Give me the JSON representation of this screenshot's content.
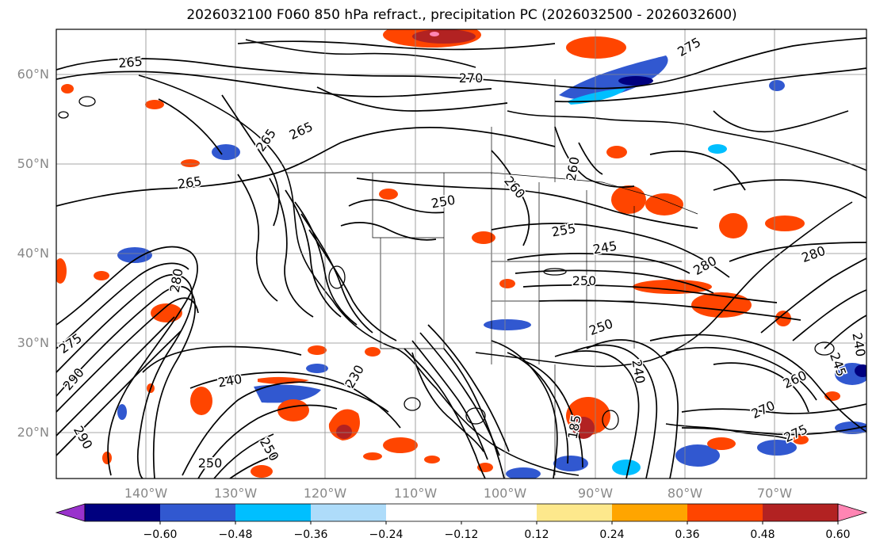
{
  "title": "2026032100 F060 850 hPa refract., precipitation PC (2026032500 - 2026032600)",
  "map": {
    "lat_labels": [
      "20°N",
      "30°N",
      "40°N",
      "50°N",
      "60°N"
    ],
    "lon_labels": [
      "140°W",
      "130°W",
      "120°W",
      "110°W",
      "100°W",
      "90°W",
      "80°W",
      "70°W"
    ]
  },
  "contour_labels": [
    "265",
    "270",
    "275",
    "265",
    "265",
    "265",
    "250",
    "260",
    "260",
    "255",
    "245",
    "250",
    "280",
    "280",
    "275",
    "290",
    "290",
    "240",
    "230",
    "250",
    "250",
    "240",
    "245",
    "240",
    "260",
    "270",
    "275",
    "280",
    "185",
    "250"
  ],
  "colorbar": {
    "colors": [
      "#9932cc",
      "#00007f",
      "#3158d0",
      "#00bfff",
      "#aedcfa",
      "#ffffff",
      "#ffffff",
      "#fde88c",
      "#ffa500",
      "#ff4500",
      "#b22222",
      "#ff85b3"
    ],
    "tick_labels": [
      "−0.60",
      "−0.48",
      "−0.36",
      "−0.24",
      "−0.12",
      "0.12",
      "0.24",
      "0.36",
      "0.48",
      "0.60"
    ]
  }
}
